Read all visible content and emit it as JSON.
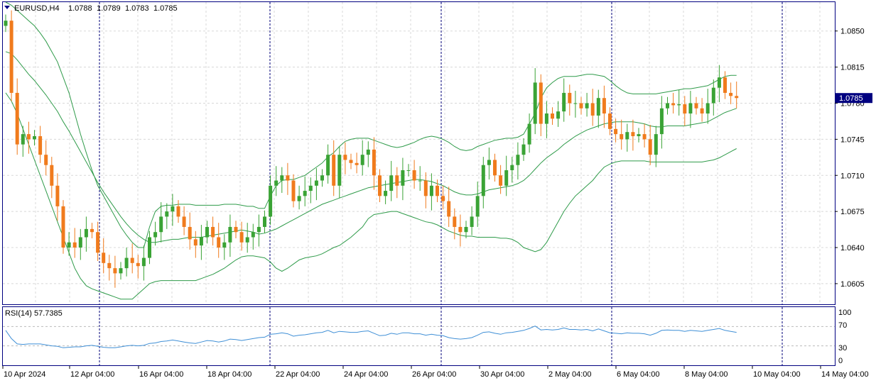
{
  "header": {
    "symbol": "EURUSD,H4",
    "open": "1.0788",
    "high": "1.0789",
    "low": "1.0783",
    "close": "1.0785"
  },
  "current_price_label": "1.0785",
  "rsi_panel": {
    "title": "RSI(14) 57.7385",
    "levels": [
      "100",
      "70",
      "30",
      "0"
    ]
  },
  "price_axis_labels": [
    "1.0850",
    "1.0815",
    "1.0780",
    "1.0745",
    "1.0710",
    "1.0675",
    "1.0640",
    "1.0605"
  ],
  "time_axis_labels": [
    "10 Apr 2024",
    "12 Apr 04:00",
    "16 Apr 04:00",
    "18 Apr 04:00",
    "22 Apr 04:00",
    "24 Apr 04:00",
    "26 Apr 04:00",
    "30 Apr 04:00",
    "2 May 04:00",
    "6 May 04:00",
    "8 May 04:00",
    "10 May 04:00",
    "14 May 04:00"
  ],
  "colors": {
    "bull": "#3aa335",
    "bear": "#f07b1d",
    "bands": "#2f9b4a",
    "rsi": "#3f8fd6",
    "axis_label_bg": "#000080",
    "grid": "#d8d8d8",
    "separator": "#00007a"
  },
  "chart_data": {
    "type": "candlestick",
    "ylim": [
      1.0585,
      1.0878
    ],
    "closes": [
      1.086,
      1.079,
      1.074,
      1.075,
      1.0745,
      1.0748,
      1.073,
      1.072,
      1.07,
      1.068,
      1.064,
      1.0645,
      1.064,
      1.065,
      1.0658,
      1.0655,
      1.0635,
      1.0625,
      1.062,
      1.0615,
      1.062,
      1.063,
      1.0625,
      1.0622,
      1.063,
      1.065,
      1.0655,
      1.067,
      1.0675,
      1.068,
      1.067,
      1.066,
      1.0648,
      1.0642,
      1.065,
      1.066,
      1.065,
      1.064,
      1.0645,
      1.066,
      1.0655,
      1.0645,
      1.065,
      1.0655,
      1.066,
      1.067,
      1.07,
      1.0705,
      1.071,
      1.0705,
      1.0685,
      1.069,
      1.0695,
      1.07,
      1.0705,
      1.071,
      1.073,
      1.07,
      1.073,
      1.0725,
      1.0722,
      1.072,
      1.073,
      1.0735,
      1.071,
      1.069,
      1.0695,
      1.071,
      1.07,
      1.0715,
      1.0715,
      1.0705,
      1.0705,
      1.069,
      1.07,
      1.069,
      1.0685,
      1.067,
      1.066,
      1.0655,
      1.066,
      1.067,
      1.069,
      1.072,
      1.0725,
      1.071,
      1.07,
      1.0715,
      1.072,
      1.073,
      1.074,
      1.076,
      1.08,
      1.076,
      1.077,
      1.0765,
      1.0772,
      1.079,
      1.078,
      1.078,
      1.0775,
      1.078,
      1.0768,
      1.0785,
      1.077,
      1.0755,
      1.075,
      1.0745,
      1.0752,
      1.0748,
      1.075,
      1.0745,
      1.073,
      1.075,
      1.0775,
      1.078,
      1.0778,
      1.0779,
      1.077,
      1.078,
      1.0775,
      1.077,
      1.078,
      1.0795,
      1.0805,
      1.079,
      1.0787,
      1.0785
    ],
    "band_upper": [
      1.088,
      1.0875,
      1.087,
      1.0865,
      1.086,
      1.0855,
      1.0848,
      1.084,
      1.083,
      1.082,
      1.0805,
      1.079,
      1.077,
      1.075,
      1.0732,
      1.0715,
      1.07,
      1.069,
      1.068,
      1.067,
      1.066,
      1.0652,
      1.0645,
      1.064,
      1.064,
      1.066,
      1.0675,
      1.068,
      1.0681,
      1.0681,
      1.0682,
      1.0682,
      1.0682,
      1.0681,
      1.0681,
      1.0681,
      1.0681,
      1.0681,
      1.0682,
      1.0682,
      1.0682,
      1.0681,
      1.068,
      1.068,
      1.0678,
      1.0678,
      1.069,
      1.07,
      1.0705,
      1.0706,
      1.0706,
      1.0708,
      1.071,
      1.0714,
      1.0718,
      1.0722,
      1.0728,
      1.0732,
      1.0738,
      1.0743,
      1.0745,
      1.0746,
      1.0746,
      1.0746,
      1.0744,
      1.0742,
      1.074,
      1.0738,
      1.0737,
      1.0738,
      1.074,
      1.0742,
      1.0745,
      1.0747,
      1.0748,
      1.0747,
      1.0745,
      1.0742,
      1.0738,
      1.0735,
      1.0734,
      1.0735,
      1.0738,
      1.074,
      1.0742,
      1.0744,
      1.0745,
      1.0746,
      1.0746,
      1.0747,
      1.075,
      1.076,
      1.077,
      1.0785,
      1.0795,
      1.08,
      1.0804,
      1.0806,
      1.0806,
      1.0806,
      1.0807,
      1.0808,
      1.0808,
      1.0807,
      1.0806,
      1.0802,
      1.0797,
      1.0793,
      1.079,
      1.0789,
      1.0789,
      1.0789,
      1.0789,
      1.0789,
      1.079,
      1.0791,
      1.0792,
      1.0793,
      1.0794,
      1.0794,
      1.0795,
      1.0796,
      1.0797,
      1.08,
      1.0803,
      1.0806,
      1.0807,
      1.0807
    ],
    "band_middle": [
      1.083,
      1.0828,
      1.0822,
      1.0815,
      1.0808,
      1.0802,
      1.0795,
      1.0788,
      1.078,
      1.0772,
      1.0762,
      1.0753,
      1.0743,
      1.0733,
      1.0723,
      1.0713,
      1.0703,
      1.0694,
      1.0686,
      1.0678,
      1.067,
      1.0663,
      1.0657,
      1.0652,
      1.0648,
      1.0645,
      1.0645,
      1.0646,
      1.0647,
      1.0648,
      1.0648,
      1.0649,
      1.065,
      1.065,
      1.065,
      1.0651,
      1.0652,
      1.0653,
      1.0654,
      1.0655,
      1.0656,
      1.0657,
      1.0656,
      1.0655,
      1.0653,
      1.0654,
      1.0656,
      1.0658,
      1.0661,
      1.0664,
      1.0667,
      1.067,
      1.0673,
      1.0676,
      1.0679,
      1.0682,
      1.0684,
      1.0686,
      1.0688,
      1.069,
      1.0692,
      1.0694,
      1.0696,
      1.0698,
      1.0699,
      1.07,
      1.0701,
      1.0702,
      1.0703,
      1.0704,
      1.0705,
      1.0706,
      1.0706,
      1.0705,
      1.0704,
      1.0702,
      1.07,
      1.0697,
      1.0694,
      1.0692,
      1.0691,
      1.0691,
      1.0692,
      1.0694,
      1.0696,
      1.0697,
      1.0698,
      1.0699,
      1.07,
      1.0702,
      1.0705,
      1.071,
      1.0716,
      1.0722,
      1.0727,
      1.0731,
      1.0735,
      1.074,
      1.0744,
      1.0748,
      1.0751,
      1.0754,
      1.0756,
      1.0758,
      1.076,
      1.0761,
      1.0762,
      1.0762,
      1.0762,
      1.0762,
      1.0761,
      1.076,
      1.0758,
      1.0757,
      1.0757,
      1.0758,
      1.0758,
      1.0758,
      1.0758,
      1.0759,
      1.076,
      1.0761,
      1.0762,
      1.0765,
      1.0768,
      1.0771,
      1.0773,
      1.0775
    ],
    "band_lower": [
      1.079,
      1.0782,
      1.077,
      1.0755,
      1.074,
      1.0725,
      1.071,
      1.0695,
      1.068,
      1.0665,
      1.065,
      1.0635,
      1.062,
      1.061,
      1.0603,
      1.06,
      1.0598,
      1.0596,
      1.0594,
      1.0592,
      1.059,
      1.059,
      1.059,
      1.0595,
      1.06,
      1.0605,
      1.0607,
      1.0608,
      1.0608,
      1.0608,
      1.0608,
      1.0608,
      1.0608,
      1.0608,
      1.061,
      1.0612,
      1.0614,
      1.0617,
      1.062,
      1.0624,
      1.0628,
      1.0631,
      1.0632,
      1.0632,
      1.0631,
      1.063,
      1.0626,
      1.062,
      1.0617,
      1.062,
      1.0624,
      1.0628,
      1.063,
      1.0631,
      1.0632,
      1.0634,
      1.0637,
      1.064,
      1.0642,
      1.0646,
      1.065,
      1.0655,
      1.066,
      1.0668,
      1.0672,
      1.0673,
      1.0674,
      1.0675,
      1.0675,
      1.0673,
      1.0671,
      1.0669,
      1.0667,
      1.0665,
      1.0664,
      1.0662,
      1.0659,
      1.0656,
      1.0654,
      1.0652,
      1.0651,
      1.0651,
      1.065,
      1.065,
      1.065,
      1.065,
      1.0649,
      1.0649,
      1.0648,
      1.0645,
      1.064,
      1.0638,
      1.0636,
      1.0638,
      1.0645,
      1.0655,
      1.0665,
      1.0675,
      1.0683,
      1.069,
      1.0695,
      1.07,
      1.0705,
      1.0712,
      1.0718,
      1.0721,
      1.0723,
      1.0724,
      1.0724,
      1.0724,
      1.0724,
      1.0724,
      1.0723,
      1.0723,
      1.0723,
      1.0723,
      1.0723,
      1.0723,
      1.0723,
      1.0723,
      1.0723,
      1.0723,
      1.0724,
      1.0725,
      1.0727,
      1.073,
      1.0733,
      1.0736
    ],
    "rsi": [
      62,
      45,
      34,
      33,
      34,
      34,
      34,
      32,
      30,
      29,
      26,
      27,
      28,
      28,
      30,
      31,
      29,
      27,
      26,
      26,
      28,
      30,
      31,
      30,
      31,
      35,
      36,
      39,
      40,
      42,
      40,
      38,
      36,
      35,
      38,
      41,
      40,
      38,
      40,
      44,
      43,
      41,
      43,
      45,
      47,
      48,
      54,
      55,
      57,
      55,
      50,
      52,
      53,
      55,
      57,
      58,
      62,
      57,
      60,
      59,
      58,
      58,
      60,
      61,
      56,
      51,
      52,
      56,
      54,
      57,
      57,
      55,
      55,
      52,
      54,
      52,
      51,
      47,
      45,
      44,
      45,
      47,
      52,
      58,
      59,
      56,
      54,
      57,
      58,
      60,
      62,
      66,
      71,
      63,
      64,
      63,
      64,
      67,
      64,
      64,
      63,
      64,
      61,
      65,
      61,
      57,
      56,
      55,
      57,
      56,
      56,
      55,
      52,
      56,
      62,
      63,
      62,
      62,
      60,
      62,
      61,
      60,
      62,
      64,
      66,
      62,
      60,
      58
    ],
    "rsi_ylim": [
      0,
      100
    ],
    "rsi_levels": [
      70,
      30
    ],
    "grid": true
  }
}
